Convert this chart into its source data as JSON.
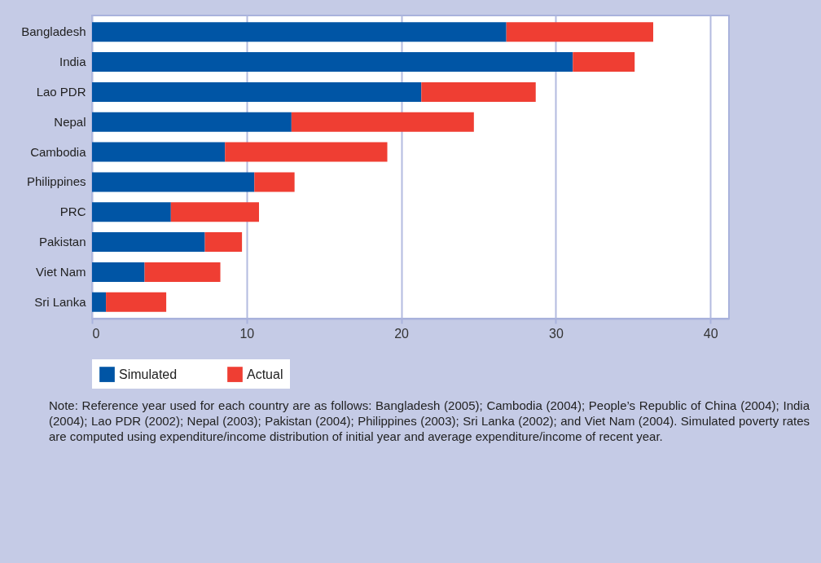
{
  "chart_data": {
    "type": "bar",
    "orientation": "horizontal",
    "stacked": true,
    "categories": [
      "Bangladesh",
      "India",
      "Lao PDR",
      "Nepal",
      "Cambodia",
      "Philippines",
      "PRC",
      "Pakistan",
      "Viet Nam",
      "Sri Lanka"
    ],
    "series": [
      {
        "name": "Simulated",
        "color": "#0055a5",
        "values": [
          26.8,
          31.1,
          21.3,
          12.9,
          8.6,
          10.5,
          5.1,
          7.3,
          3.4,
          0.9
        ]
      },
      {
        "name": "Actual",
        "color": "#ef3e33",
        "values": [
          9.5,
          4.0,
          7.4,
          11.8,
          10.5,
          2.6,
          5.7,
          2.4,
          4.9,
          3.9
        ]
      }
    ],
    "xlim": [
      0,
      41.2
    ],
    "xticks": [
      0,
      10,
      20,
      30,
      40
    ],
    "grid": "x",
    "legend": "bottom",
    "annotations": [
      "Note: Reference year used for each country are as follows: Bangladesh (2005); Cambodia (2004); People’s Republic of China (2004); India (2004); Lao PDR (2002); Nepal (2003); Pakistan (2004); Philippines (2003); Sri Lanka (2002); and Viet Nam (2004). Simulated poverty rates are computed using expenditure/income distribution of initial year and average expenditure/income of recent year."
    ]
  }
}
